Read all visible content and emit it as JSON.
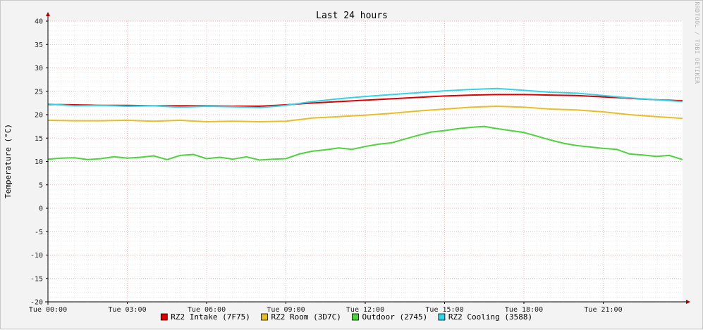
{
  "chart_data": {
    "type": "line",
    "title": "Last 24 hours",
    "ylabel": "Temperature (°C)",
    "side_label": "RRDTOOL / TOBI OETIKER",
    "ylim": [
      -20,
      40
    ],
    "xlim_hours": [
      0,
      24
    ],
    "y_ticks": [
      "-20",
      "-15",
      "-10",
      "-5",
      "0",
      "5",
      "10",
      "15",
      "20",
      "25",
      "30",
      "35",
      "40"
    ],
    "x_ticks": [
      {
        "h": 0,
        "label": "Tue 00:00"
      },
      {
        "h": 3,
        "label": "Tue 03:00"
      },
      {
        "h": 6,
        "label": "Tue 06:00"
      },
      {
        "h": 9,
        "label": "Tue 09:00"
      },
      {
        "h": 12,
        "label": "Tue 12:00"
      },
      {
        "h": 15,
        "label": "Tue 15:00"
      },
      {
        "h": 18,
        "label": "Tue 18:00"
      },
      {
        "h": 21,
        "label": "Tue 21:00"
      }
    ],
    "grid": true,
    "legend_position": "bottom",
    "series": [
      {
        "name": "RZ2 Intake (7F75)",
        "color": "#dd0000",
        "points": [
          [
            0,
            22.2
          ],
          [
            1,
            22.1
          ],
          [
            2,
            22.0
          ],
          [
            3,
            22.0
          ],
          [
            4,
            21.9
          ],
          [
            5,
            21.9
          ],
          [
            6,
            21.9
          ],
          [
            7,
            21.8
          ],
          [
            8,
            21.8
          ],
          [
            9,
            22.1
          ],
          [
            10,
            22.5
          ],
          [
            11,
            22.8
          ],
          [
            12,
            23.1
          ],
          [
            13,
            23.4
          ],
          [
            14,
            23.7
          ],
          [
            15,
            24.0
          ],
          [
            16,
            24.2
          ],
          [
            17,
            24.3
          ],
          [
            18,
            24.3
          ],
          [
            19,
            24.2
          ],
          [
            20,
            24.1
          ],
          [
            21,
            23.8
          ],
          [
            22,
            23.5
          ],
          [
            23,
            23.2
          ],
          [
            24,
            23.0
          ]
        ]
      },
      {
        "name": "RZ2 Room (3D7C)",
        "color": "#e8be28",
        "points": [
          [
            0,
            18.8
          ],
          [
            1,
            18.7
          ],
          [
            2,
            18.7
          ],
          [
            3,
            18.8
          ],
          [
            4,
            18.6
          ],
          [
            5,
            18.8
          ],
          [
            6,
            18.5
          ],
          [
            7,
            18.6
          ],
          [
            8,
            18.5
          ],
          [
            9,
            18.6
          ],
          [
            10,
            19.3
          ],
          [
            11,
            19.6
          ],
          [
            12,
            19.9
          ],
          [
            13,
            20.3
          ],
          [
            14,
            20.8
          ],
          [
            15,
            21.2
          ],
          [
            16,
            21.6
          ],
          [
            17,
            21.8
          ],
          [
            18,
            21.6
          ],
          [
            19,
            21.2
          ],
          [
            20,
            21.0
          ],
          [
            21,
            20.6
          ],
          [
            22,
            20.0
          ],
          [
            23,
            19.6
          ],
          [
            24,
            19.2
          ]
        ]
      },
      {
        "name": "Outdoor (2745)",
        "color": "#4ed33e",
        "points": [
          [
            0,
            10.5
          ],
          [
            0.5,
            10.7
          ],
          [
            1,
            10.8
          ],
          [
            1.5,
            10.4
          ],
          [
            2,
            10.6
          ],
          [
            2.5,
            11.0
          ],
          [
            3,
            10.7
          ],
          [
            3.5,
            10.9
          ],
          [
            4,
            11.2
          ],
          [
            4.5,
            10.4
          ],
          [
            5,
            11.3
          ],
          [
            5.5,
            11.5
          ],
          [
            6,
            10.6
          ],
          [
            6.5,
            10.9
          ],
          [
            7,
            10.5
          ],
          [
            7.5,
            11.0
          ],
          [
            8,
            10.3
          ],
          [
            8.5,
            10.5
          ],
          [
            9,
            10.6
          ],
          [
            9.5,
            11.6
          ],
          [
            10,
            12.2
          ],
          [
            10.5,
            12.5
          ],
          [
            11,
            12.9
          ],
          [
            11.5,
            12.6
          ],
          [
            12,
            13.2
          ],
          [
            12.5,
            13.7
          ],
          [
            13,
            14.0
          ],
          [
            13.5,
            14.8
          ],
          [
            14,
            15.6
          ],
          [
            14.5,
            16.3
          ],
          [
            15,
            16.6
          ],
          [
            15.5,
            17.0
          ],
          [
            16,
            17.3
          ],
          [
            16.5,
            17.5
          ],
          [
            17,
            17.0
          ],
          [
            17.5,
            16.6
          ],
          [
            18,
            16.2
          ],
          [
            18.5,
            15.4
          ],
          [
            19,
            14.6
          ],
          [
            19.5,
            13.9
          ],
          [
            20,
            13.4
          ],
          [
            20.5,
            13.1
          ],
          [
            21,
            12.8
          ],
          [
            21.5,
            12.6
          ],
          [
            22,
            11.6
          ],
          [
            22.5,
            11.4
          ],
          [
            23,
            11.1
          ],
          [
            23.5,
            11.3
          ],
          [
            24,
            10.4
          ]
        ]
      },
      {
        "name": "RZ2 Cooling (3588)",
        "color": "#34d4e8",
        "points": [
          [
            0,
            22.3
          ],
          [
            1,
            21.9
          ],
          [
            2,
            22.0
          ],
          [
            3,
            21.8
          ],
          [
            4,
            21.9
          ],
          [
            5,
            21.6
          ],
          [
            6,
            21.8
          ],
          [
            7,
            21.7
          ],
          [
            8,
            21.5
          ],
          [
            9,
            22.0
          ],
          [
            10,
            22.8
          ],
          [
            11,
            23.4
          ],
          [
            12,
            23.9
          ],
          [
            13,
            24.3
          ],
          [
            14,
            24.7
          ],
          [
            15,
            25.1
          ],
          [
            16,
            25.4
          ],
          [
            17,
            25.6
          ],
          [
            18,
            25.2
          ],
          [
            19,
            24.8
          ],
          [
            20,
            24.6
          ],
          [
            21,
            24.1
          ],
          [
            22,
            23.6
          ],
          [
            23,
            23.2
          ],
          [
            24,
            22.8
          ]
        ]
      }
    ]
  }
}
